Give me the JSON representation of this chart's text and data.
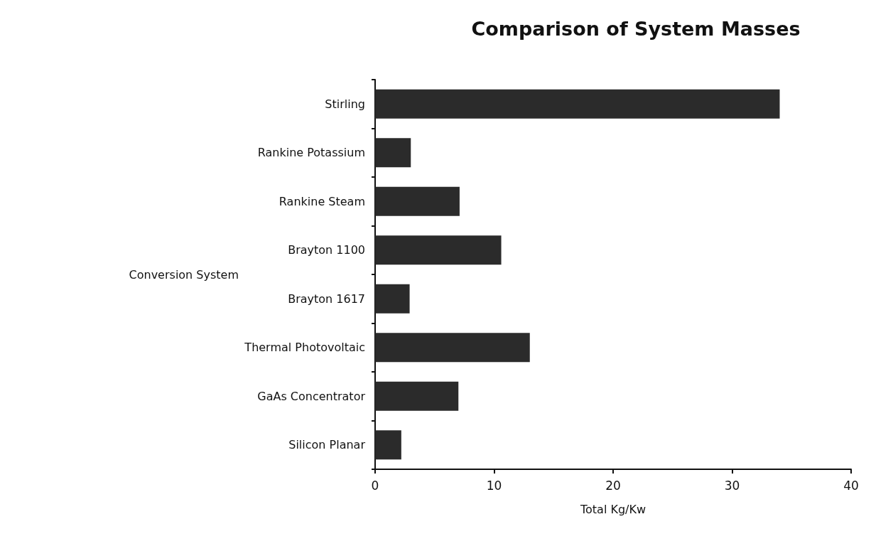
{
  "chart_data": {
    "type": "bar",
    "orientation": "horizontal",
    "title": "Comparison of System Masses",
    "xlabel": "Total Kg/Kw",
    "ylabel": "Conversion System",
    "categories": [
      "Stirling",
      "Rankine Potassium",
      "Rankine Steam",
      "Brayton 1100",
      "Brayton 1617",
      "Thermal Photovoltaic",
      "GaAs Concentrator",
      "Silicon Planar"
    ],
    "values": [
      34,
      3,
      7.1,
      10.6,
      2.9,
      13,
      7,
      2.2
    ],
    "color": "#2b2b2b",
    "xlim": [
      0,
      40
    ],
    "xticks": [
      0,
      10,
      20,
      30,
      40
    ],
    "grid": false
  }
}
